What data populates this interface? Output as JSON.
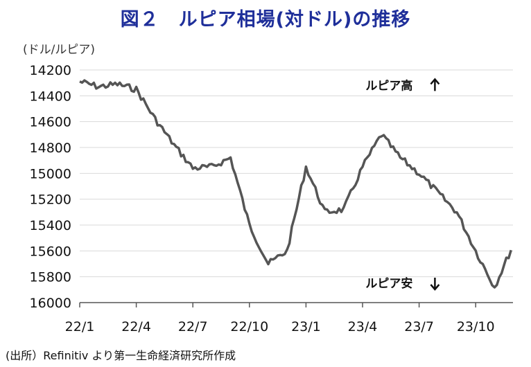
{
  "title": "図２　ルピア相場(対ドル)の推移",
  "unit_label": "(ドル/ルピア)",
  "source": "(出所）Refinitiv より第一生命経済研究所作成",
  "chart_data": {
    "type": "line",
    "xlabel": "",
    "ylabel": "",
    "ylim": [
      14200,
      16000
    ],
    "y_inverted": true,
    "yticks": [
      14200,
      14400,
      14600,
      14800,
      15000,
      15200,
      15400,
      15600,
      15800,
      16000
    ],
    "xticks": [
      "22/1",
      "22/4",
      "22/7",
      "22/10",
      "23/1",
      "23/4",
      "23/7",
      "23/10"
    ],
    "grid": "horizontal",
    "line_color": "#555555",
    "annotations": [
      {
        "text": "ルピア高",
        "arrow": "up",
        "x": "23/6",
        "y": 14320
      },
      {
        "text": "ルピア安",
        "arrow": "down",
        "x": "23/6",
        "y": 15850
      }
    ],
    "x": [
      "2022-01",
      "2022-02",
      "2022-03",
      "2022-04",
      "2022-05",
      "2022-06",
      "2022-07",
      "2022-08",
      "2022-09",
      "2022-10",
      "2022-11",
      "2022-12",
      "2023-01",
      "2023-02",
      "2023-03",
      "2023-04",
      "2023-05",
      "2023-06",
      "2023-07",
      "2023-08",
      "2023-09",
      "2023-10",
      "2023-11",
      "2023-12"
    ],
    "values": [
      14290,
      14330,
      14310,
      14350,
      14580,
      14780,
      14960,
      14950,
      14880,
      15400,
      15700,
      15600,
      14950,
      15300,
      15280,
      14950,
      14700,
      14880,
      15000,
      15150,
      15300,
      15600,
      15880,
      15550
    ]
  }
}
